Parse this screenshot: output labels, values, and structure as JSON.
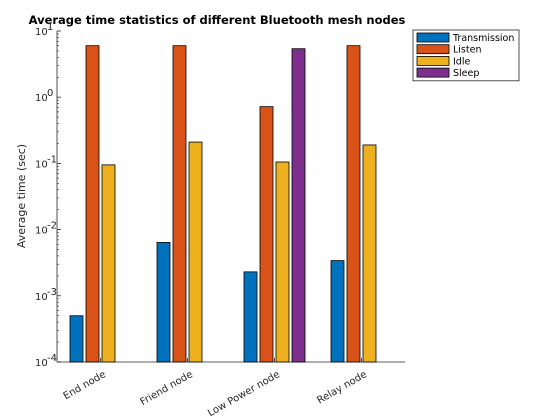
{
  "chart_data": {
    "type": "bar",
    "title": "Average time statistics of different Bluetooth mesh nodes",
    "xlabel": "",
    "ylabel": "Average time (sec)",
    "yscale": "log",
    "ylim": [
      0.0001,
      10
    ],
    "yticks": [
      {
        "value": 0.0001,
        "base": "10",
        "exp": "-4"
      },
      {
        "value": 0.001,
        "base": "10",
        "exp": "-3"
      },
      {
        "value": 0.01,
        "base": "10",
        "exp": "-2"
      },
      {
        "value": 0.1,
        "base": "10",
        "exp": "-1"
      },
      {
        "value": 1,
        "base": "10",
        "exp": "0"
      },
      {
        "value": 10,
        "base": "10",
        "exp": "1"
      }
    ],
    "categories": [
      "End node",
      "Friend node",
      "Low Power node",
      "Relay node"
    ],
    "series": [
      {
        "name": "Transmission",
        "color": "#0072BD",
        "values": [
          0.0005,
          0.0064,
          0.0023,
          0.0034
        ]
      },
      {
        "name": "Listen",
        "color": "#D95319",
        "values": [
          6.0,
          6.0,
          0.72,
          6.0
        ]
      },
      {
        "name": "Idle",
        "color": "#EDB120",
        "values": [
          0.095,
          0.21,
          0.105,
          0.19
        ]
      },
      {
        "name": "Sleep",
        "color": "#7E2F8E",
        "values": [
          null,
          null,
          5.4,
          null
        ]
      }
    ],
    "grid": false,
    "legend_position": "top-right"
  }
}
